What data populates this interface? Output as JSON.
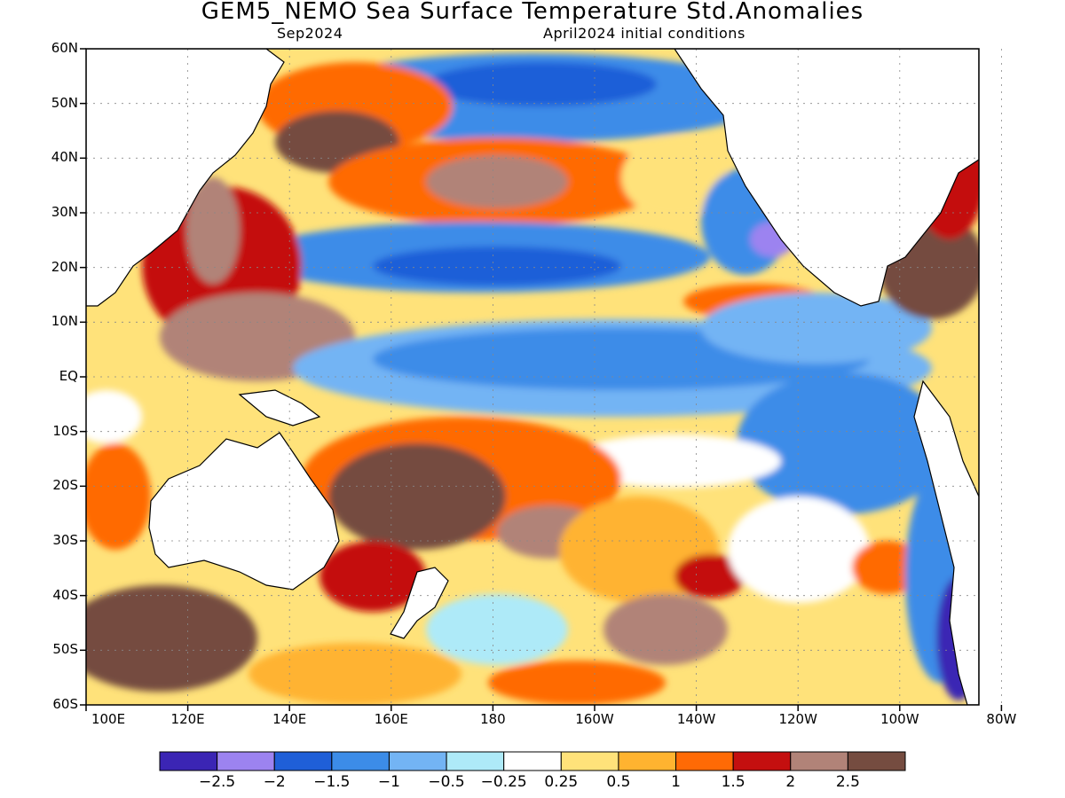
{
  "title": "GEM5_NEMO Sea Surface Temperature Std.Anomalies",
  "subtitle_left": "Sep2024",
  "subtitle_right": "April2024 initial conditions",
  "map": {
    "lat_labels": [
      "60N",
      "50N",
      "40N",
      "30N",
      "20N",
      "10N",
      "EQ",
      "10S",
      "20S",
      "30S",
      "40S",
      "50S",
      "60S"
    ],
    "lon_labels": [
      "100E",
      "120E",
      "140E",
      "160E",
      "180",
      "160W",
      "140W",
      "120W",
      "100W",
      "80W"
    ],
    "land_color": "#ffffff",
    "coast_color": "#000000",
    "grid": true
  },
  "colorbar": {
    "colors": [
      "#3b25b4",
      "#9c83f0",
      "#1f5fd8",
      "#3c8ce8",
      "#73b4f4",
      "#aeeaf8",
      "#ffffff",
      "#ffe27a",
      "#ffb330",
      "#ff6a05",
      "#c40f0f",
      "#b18378",
      "#754c40"
    ],
    "labels": [
      "-2.5",
      "-2",
      "-1.5",
      "-1",
      "-0.5",
      "-0.25",
      "0.25",
      "0.5",
      "1",
      "1.5",
      "2",
      "2.5"
    ]
  }
}
